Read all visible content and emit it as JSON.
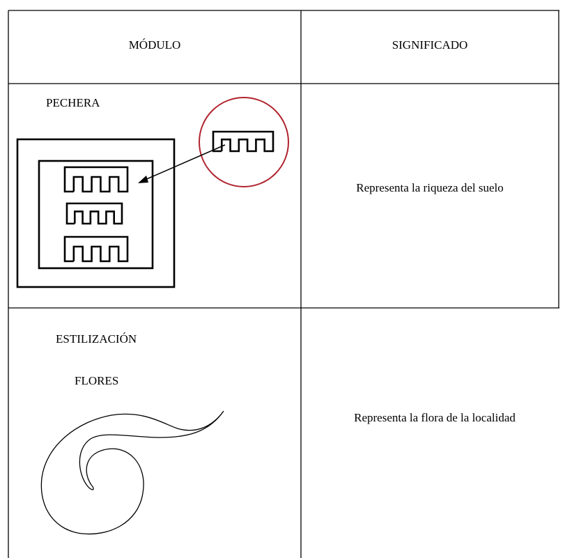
{
  "table": {
    "header": [
      "MÓDULO",
      "SIGNIFICADO"
    ],
    "rows": [
      {
        "module": [
          "PECHERA"
        ],
        "meaning": "Representa la riqueza del suelo"
      },
      {
        "module": [
          "ESTILIZACIÓN",
          "FLORES"
        ],
        "meaning": "Representa la flora de la localidad"
      }
    ]
  }
}
